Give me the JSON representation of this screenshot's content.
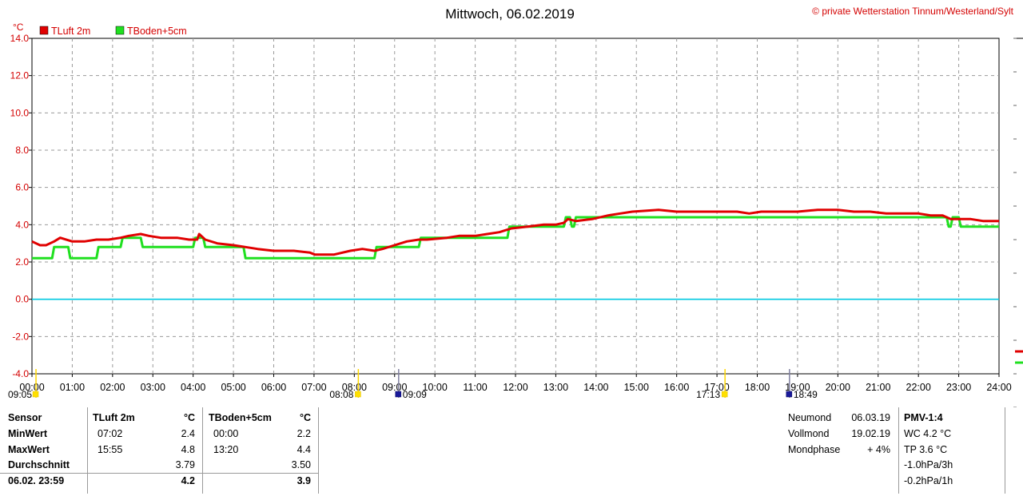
{
  "chart_data": {
    "type": "line",
    "title": "Mittwoch, 06.02.2019",
    "copyright": "© private Wetterstation Tinnum/Westerland/Sylt",
    "ylabel": "°C",
    "ylim": [
      -4,
      14
    ],
    "yticks": [
      "14.0",
      "12.0",
      "10.0",
      "8.0",
      "6.0",
      "4.0",
      "2.0",
      "0.0",
      "-2.0",
      "-4.0"
    ],
    "xlim": [
      0,
      24
    ],
    "xticks": [
      "00:00",
      "01:00",
      "02:00",
      "03:00",
      "04:00",
      "05:00",
      "06:00",
      "07:00",
      "08:00",
      "09:00",
      "10:00",
      "11:00",
      "12:00",
      "13:00",
      "14:00",
      "15:00",
      "16:00",
      "17:00",
      "18:00",
      "19:00",
      "20:00",
      "21:00",
      "22:00",
      "23:00",
      "24:00"
    ],
    "grid": true,
    "legend_position": "top-left",
    "zero_line_color": "#00c8e0",
    "series": [
      {
        "name": "TLuft 2m",
        "color": "#e00000",
        "points": [
          [
            0,
            3.1
          ],
          [
            0.2,
            2.9
          ],
          [
            0.35,
            2.9
          ],
          [
            0.55,
            3.1
          ],
          [
            0.7,
            3.3
          ],
          [
            1.0,
            3.1
          ],
          [
            1.3,
            3.1
          ],
          [
            1.6,
            3.2
          ],
          [
            1.9,
            3.2
          ],
          [
            2.2,
            3.3
          ],
          [
            2.4,
            3.4
          ],
          [
            2.7,
            3.5
          ],
          [
            2.9,
            3.4
          ],
          [
            3.2,
            3.3
          ],
          [
            3.6,
            3.3
          ],
          [
            3.9,
            3.2
          ],
          [
            4.1,
            3.2
          ],
          [
            4.15,
            3.5
          ],
          [
            4.3,
            3.2
          ],
          [
            4.6,
            3.0
          ],
          [
            5.0,
            2.9
          ],
          [
            5.3,
            2.8
          ],
          [
            5.6,
            2.7
          ],
          [
            6.0,
            2.6
          ],
          [
            6.5,
            2.6
          ],
          [
            6.9,
            2.5
          ],
          [
            7.02,
            2.4
          ],
          [
            7.5,
            2.4
          ],
          [
            7.9,
            2.6
          ],
          [
            8.2,
            2.7
          ],
          [
            8.5,
            2.6
          ],
          [
            8.7,
            2.7
          ],
          [
            9.0,
            2.9
          ],
          [
            9.3,
            3.1
          ],
          [
            9.6,
            3.2
          ],
          [
            9.8,
            3.2
          ],
          [
            10.3,
            3.3
          ],
          [
            10.6,
            3.4
          ],
          [
            11.0,
            3.4
          ],
          [
            11.3,
            3.5
          ],
          [
            11.6,
            3.6
          ],
          [
            11.9,
            3.8
          ],
          [
            12.3,
            3.9
          ],
          [
            12.7,
            4.0
          ],
          [
            13.0,
            4.0
          ],
          [
            13.2,
            4.1
          ],
          [
            13.3,
            4.3
          ],
          [
            13.5,
            4.2
          ],
          [
            13.9,
            4.3
          ],
          [
            14.3,
            4.5
          ],
          [
            14.6,
            4.6
          ],
          [
            14.9,
            4.7
          ],
          [
            15.55,
            4.8
          ],
          [
            16.0,
            4.7
          ],
          [
            16.5,
            4.7
          ],
          [
            17.0,
            4.7
          ],
          [
            17.5,
            4.7
          ],
          [
            17.8,
            4.6
          ],
          [
            18.1,
            4.7
          ],
          [
            18.6,
            4.7
          ],
          [
            19.0,
            4.7
          ],
          [
            19.5,
            4.8
          ],
          [
            20.0,
            4.8
          ],
          [
            20.4,
            4.7
          ],
          [
            20.8,
            4.7
          ],
          [
            21.2,
            4.6
          ],
          [
            21.6,
            4.6
          ],
          [
            22.0,
            4.6
          ],
          [
            22.3,
            4.5
          ],
          [
            22.6,
            4.5
          ],
          [
            22.8,
            4.3
          ],
          [
            23.0,
            4.3
          ],
          [
            23.3,
            4.3
          ],
          [
            23.6,
            4.2
          ],
          [
            24.0,
            4.2
          ]
        ]
      },
      {
        "name": "TBoden+5cm",
        "color": "#20e020",
        "points": [
          [
            0,
            2.2
          ],
          [
            0.5,
            2.2
          ],
          [
            0.55,
            2.8
          ],
          [
            0.9,
            2.8
          ],
          [
            0.95,
            2.2
          ],
          [
            1.6,
            2.2
          ],
          [
            1.65,
            2.8
          ],
          [
            2.2,
            2.8
          ],
          [
            2.25,
            3.3
          ],
          [
            2.7,
            3.3
          ],
          [
            2.75,
            2.8
          ],
          [
            4.0,
            2.8
          ],
          [
            4.05,
            3.3
          ],
          [
            4.25,
            3.3
          ],
          [
            4.3,
            2.8
          ],
          [
            5.25,
            2.8
          ],
          [
            5.3,
            2.2
          ],
          [
            8.5,
            2.2
          ],
          [
            8.55,
            2.8
          ],
          [
            9.6,
            2.8
          ],
          [
            9.65,
            3.3
          ],
          [
            11.8,
            3.3
          ],
          [
            11.85,
            3.9
          ],
          [
            13.2,
            3.9
          ],
          [
            13.25,
            4.4
          ],
          [
            13.35,
            4.4
          ],
          [
            13.4,
            3.9
          ],
          [
            13.45,
            3.9
          ],
          [
            13.5,
            4.4
          ],
          [
            22.7,
            4.4
          ],
          [
            22.75,
            3.9
          ],
          [
            22.8,
            3.9
          ],
          [
            22.85,
            4.4
          ],
          [
            23.0,
            4.4
          ],
          [
            23.05,
            3.9
          ],
          [
            24.0,
            3.9
          ]
        ]
      }
    ],
    "events": [
      {
        "label": "09:05",
        "hour": 0.1,
        "color": "#ffe000"
      },
      {
        "label": "08:08",
        "hour": 8.1,
        "color": "#ffe000"
      },
      {
        "label": "09:09",
        "hour": 9.1,
        "color": "#1a1a9a"
      },
      {
        "label": "17:13",
        "hour": 17.2,
        "color": "#ffe000"
      },
      {
        "label": "18:49",
        "hour": 18.8,
        "color": "#1a1a9a"
      }
    ]
  },
  "table": {
    "header": {
      "sensor": "Sensor",
      "s1": "TLuft 2m",
      "unit1": "°C",
      "s2": "TBoden+5cm",
      "unit2": "°C"
    },
    "min": {
      "label": "MinWert",
      "t1": "07:02",
      "v1": "2.4",
      "t2": "00:00",
      "v2": "2.2"
    },
    "max": {
      "label": "MaxWert",
      "t1": "15:55",
      "v1": "4.8",
      "t2": "13:20",
      "v2": "4.4"
    },
    "avg": {
      "label": "Durchschnitt",
      "v1": "3.79",
      "v2": "3.50"
    },
    "last": {
      "label": "06.02. 23:59",
      "v1": "4.2",
      "v2": "3.9"
    }
  },
  "moon": {
    "neumond": {
      "label": "Neumond",
      "value": "06.03.19"
    },
    "vollmond": {
      "label": "Vollmond",
      "value": "19.02.19"
    },
    "phase": {
      "label": "Mondphase",
      "value": "+ 4%"
    }
  },
  "pmv": {
    "title": "PMV-1:4",
    "wc": "WC 4.2 °C",
    "tp": "TP 3.6 °C",
    "p3h": "-1.0hPa/3h",
    "p1h": "-0.2hPa/1h"
  }
}
